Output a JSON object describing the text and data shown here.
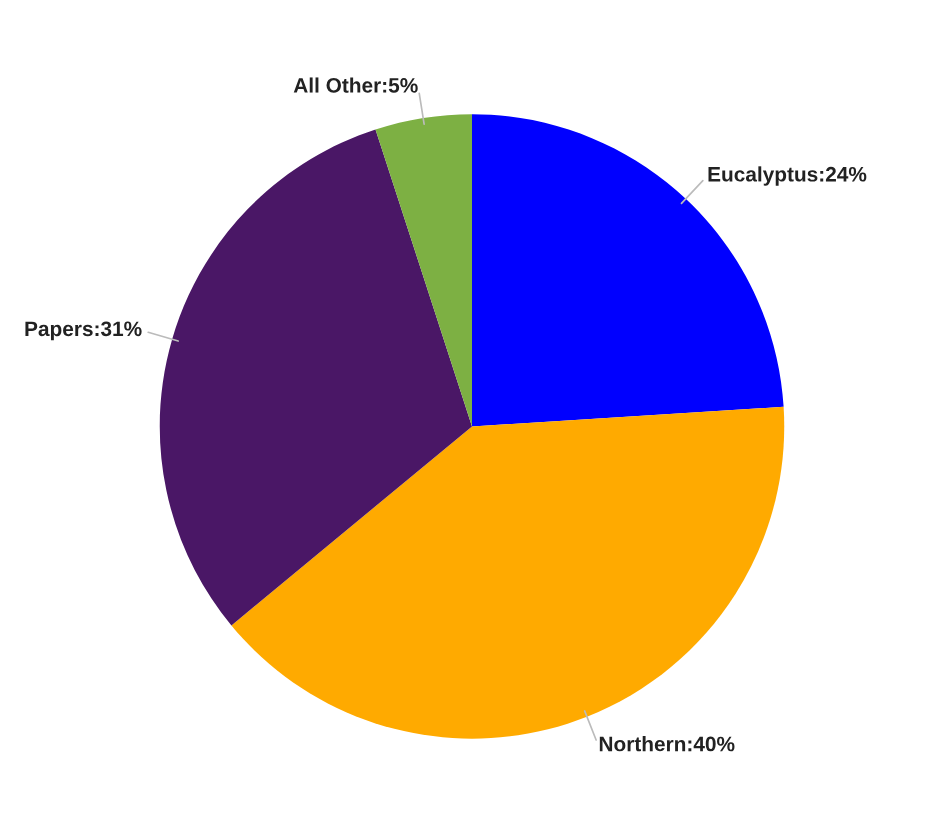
{
  "chart_data": {
    "type": "pie",
    "categories": [
      "Eucalyptus",
      "Northern",
      "Papers",
      "All Other"
    ],
    "values": [
      24,
      40,
      31,
      5
    ],
    "value_labels": [
      "24%",
      "40%",
      "31%",
      "5%"
    ],
    "colors": [
      "#0000ff",
      "#ffaa00",
      "#4a1766",
      "#7db043"
    ]
  }
}
